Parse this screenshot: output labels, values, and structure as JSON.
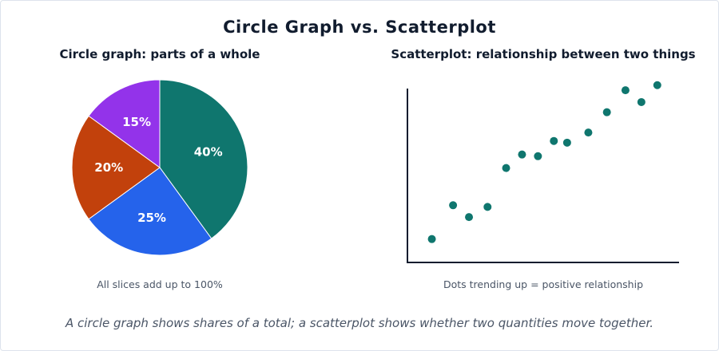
{
  "title": "Circle Graph vs. Scatterplot",
  "caption": "A circle graph shows shares of a total; a scatterplot shows whether two quantities move together.",
  "colors": {
    "text": "#111c2e",
    "muted": "#4a5566",
    "axis": "#111c2e",
    "dot": "#0f766e"
  },
  "chart_data": [
    {
      "type": "pie",
      "title": "Circle graph: parts of a whole",
      "note": "All slices add up to 100%",
      "slices": [
        {
          "value": 40,
          "label": "40%",
          "color": "#0f766e"
        },
        {
          "value": 25,
          "label": "25%",
          "color": "#2563eb"
        },
        {
          "value": 20,
          "label": "20%",
          "color": "#c2410c"
        },
        {
          "value": 15,
          "label": "15%",
          "color": "#9333ea"
        }
      ]
    },
    {
      "type": "scatter",
      "title": "Scatterplot: relationship between two things",
      "note": "Dots trending up = positive relationship",
      "xlabel": "",
      "ylabel": "",
      "xlim": [
        0,
        10
      ],
      "ylim": [
        0,
        10
      ],
      "grid": false,
      "points": [
        {
          "x": 0.8,
          "y": 1.1
        },
        {
          "x": 1.6,
          "y": 3.1
        },
        {
          "x": 2.2,
          "y": 2.4
        },
        {
          "x": 2.9,
          "y": 3.0
        },
        {
          "x": 3.6,
          "y": 5.3
        },
        {
          "x": 4.2,
          "y": 6.1
        },
        {
          "x": 4.8,
          "y": 6.0
        },
        {
          "x": 5.4,
          "y": 6.9
        },
        {
          "x": 5.9,
          "y": 6.8
        },
        {
          "x": 6.7,
          "y": 7.4
        },
        {
          "x": 7.4,
          "y": 8.6
        },
        {
          "x": 8.1,
          "y": 9.9
        },
        {
          "x": 8.7,
          "y": 9.2
        },
        {
          "x": 9.3,
          "y": 10.2
        }
      ]
    }
  ]
}
